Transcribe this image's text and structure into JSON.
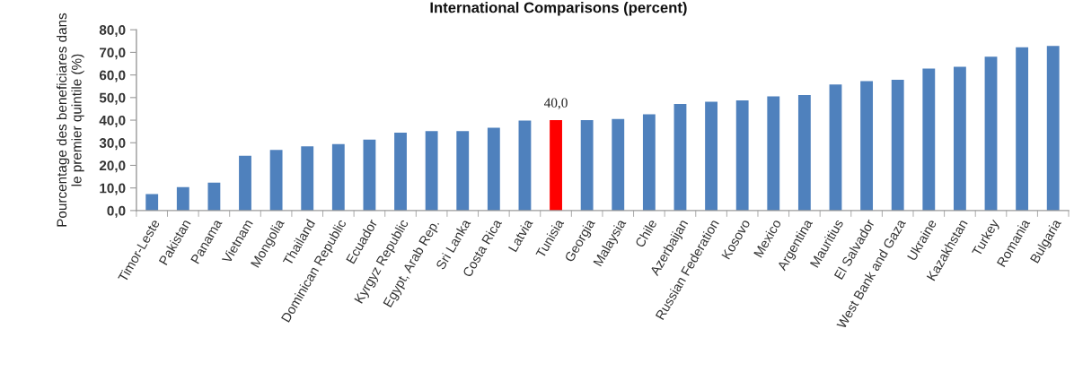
{
  "chart_data": {
    "type": "bar",
    "title": "International Comparisons (percent)",
    "ylabel": "Pourcentage des beneficiares dans\nle premier quintile (%)",
    "categories": [
      "Timor-Leste",
      "Pakistan",
      "Panama",
      "Vietnam",
      "Mongolia",
      "Thailand",
      "Dominican Republic",
      "Ecuador",
      "Kyrgyz Republic",
      "Egypt, Arab Rep.",
      "Sri Lanka",
      "Costa Rica",
      "Latvia",
      "Tunisia",
      "Georgia",
      "Malaysia",
      "Chile",
      "Azerbaijan",
      "Russian Federation",
      "Kosovo",
      "Mexico",
      "Argentina",
      "Mauritius",
      "El Salvador",
      "West Bank and Gaza",
      "Ukraine",
      "Kazakhstan",
      "Turkey",
      "Romania",
      "Bulgaria"
    ],
    "values": [
      7.3,
      10.4,
      12.4,
      24.3,
      26.8,
      28.4,
      29.4,
      31.4,
      34.5,
      35.2,
      35.2,
      36.6,
      39.8,
      40.0,
      40.0,
      40.5,
      42.6,
      47.2,
      48.1,
      48.7,
      50.5,
      51.1,
      55.8,
      57.3,
      57.9,
      62.8,
      63.6,
      68.1,
      72.2,
      72.8
    ],
    "colors": [
      "#4f81bd",
      "#4f81bd",
      "#4f81bd",
      "#4f81bd",
      "#4f81bd",
      "#4f81bd",
      "#4f81bd",
      "#4f81bd",
      "#4f81bd",
      "#4f81bd",
      "#4f81bd",
      "#4f81bd",
      "#4f81bd",
      "#ff0000",
      "#4f81bd",
      "#4f81bd",
      "#4f81bd",
      "#4f81bd",
      "#4f81bd",
      "#4f81bd",
      "#4f81bd",
      "#4f81bd",
      "#4f81bd",
      "#4f81bd",
      "#4f81bd",
      "#4f81bd",
      "#4f81bd",
      "#4f81bd",
      "#4f81bd",
      "#4f81bd"
    ],
    "value_labels": [
      null,
      null,
      null,
      null,
      null,
      null,
      null,
      null,
      null,
      null,
      null,
      null,
      null,
      "40,0",
      null,
      null,
      null,
      null,
      null,
      null,
      null,
      null,
      null,
      null,
      null,
      null,
      null,
      null,
      null,
      null
    ],
    "ylim": [
      0,
      80
    ],
    "yticks": [
      {
        "value": 0,
        "label": "0,0"
      },
      {
        "value": 10,
        "label": "10,0"
      },
      {
        "value": 20,
        "label": "20,0"
      },
      {
        "value": 30,
        "label": "30,0"
      },
      {
        "value": 40,
        "label": "40,0"
      },
      {
        "value": 50,
        "label": "50,0"
      },
      {
        "value": 60,
        "label": "60,0"
      },
      {
        "value": 70,
        "label": "70,0"
      },
      {
        "value": 80,
        "label": "80,0"
      }
    ]
  }
}
